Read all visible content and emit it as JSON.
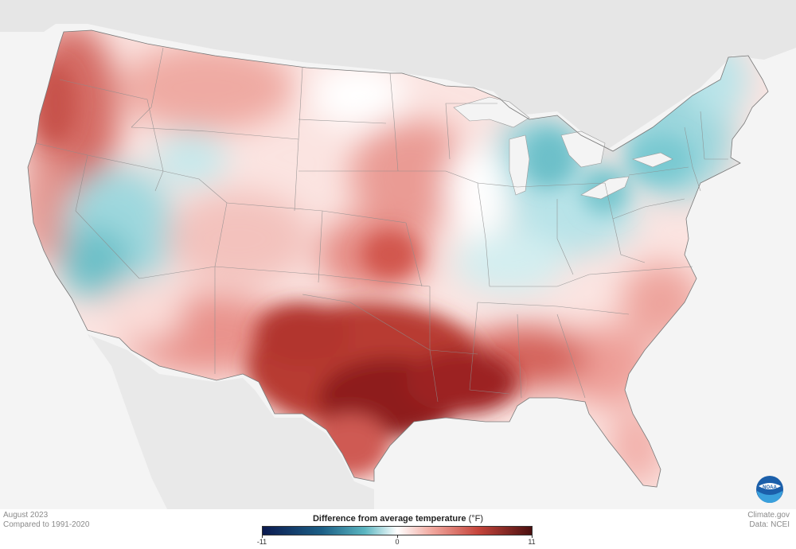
{
  "map": {
    "subject": "United States temperature anomaly map"
  },
  "footer": {
    "date_label": "August 2023",
    "comparison_label": "Compared to 1991-2020",
    "credit_site": "Climate.gov",
    "credit_data": "Data: NCEI"
  },
  "legend": {
    "title": "Difference from average temperature",
    "unit": "(°F)",
    "min_label": "-11",
    "mid_label": "0",
    "max_label": "11",
    "min_value": -11,
    "max_value": 11,
    "colors": {
      "cold_extreme": "#0b1a4f",
      "cold": "#5bb6c1",
      "neutral": "#ffffff",
      "warm": "#f1a79e",
      "warm_extreme": "#4a0f0f"
    }
  },
  "logo": {
    "text": "NOAA"
  }
}
